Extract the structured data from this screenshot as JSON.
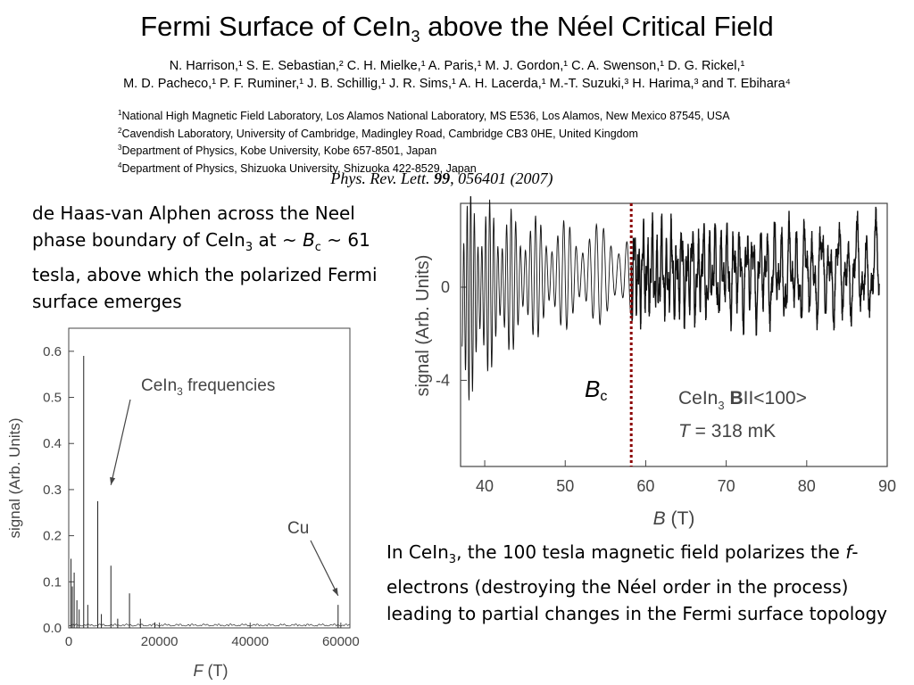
{
  "header": {
    "title_part1": "Fermi Surface of CeIn",
    "title_sub": "3",
    "title_part2": " above the Néel Critical Field",
    "authors_line1": "N. Harrison,¹ S. E. Sebastian,² C. H. Mielke,¹ A. Paris,¹ M. J. Gordon,¹ C. A. Swenson,¹ D. G. Rickel,¹",
    "authors_line2": "M. D. Pacheco,¹  P. F. Ruminer,¹ J. B. Schillig,¹ J. R. Sims,¹ A. H. Lacerda,¹ M.-T. Suzuki,³ H. Harima,³ and T. Ebihara⁴",
    "affiliations": [
      {
        "num": "1",
        "text": "National High Magnetic Field Laboratory, Los Alamos National Laboratory, MS E536, Los Alamos, New Mexico 87545, USA"
      },
      {
        "num": "2",
        "text": "Cavendish Laboratory, University of Cambridge, Madingley Road, Cambridge CB3 0HE, United Kingdom"
      },
      {
        "num": "3",
        "text": "Department of Physics, Kobe University, Kobe 657-8501, Japan"
      },
      {
        "num": "4",
        "text": "Department of Physics, Shizuoka University, Shizuoka 422-8529, Japan"
      }
    ],
    "journal_name": "Phys. Rev. Lett.",
    "journal_volume": "99",
    "journal_rest": ", 056401 (2007)"
  },
  "note1": {
    "a": "de Haas-van Alphen across the Neel phase boundary of CeIn",
    "sub": "3",
    "b": " at ~ ",
    "bc_b": "B",
    "bc_c": "c",
    "c": " ~ 61 tesla, above which the polarized Fermi surface emerges"
  },
  "note2": {
    "a": "In CeIn",
    "sub": "3",
    "b": ", the 100 tesla magnetic field polarizes the ",
    "f": "f",
    "c": "-electrons (destroying the Néel order in the process) leading to partial changes in the Fermi surface topology"
  },
  "chart_data": [
    {
      "type": "line",
      "xlabel_var": "F",
      "xlabel_unit": "(T)",
      "ylabel": "signal (Arb. Units)",
      "xlim": [
        0,
        62000
      ],
      "ylim": [
        0,
        0.65
      ],
      "xticks": [
        0,
        20000,
        40000,
        60000
      ],
      "xtick_labels": [
        "0",
        "20000",
        "40000",
        "60000"
      ],
      "yticks": [
        0.0,
        0.1,
        0.2,
        0.3,
        0.4,
        0.5,
        0.6
      ],
      "ytick_labels": [
        "0.0",
        "0.1",
        "0.2",
        "0.3",
        "0.4",
        "0.5",
        "0.6"
      ],
      "peaks": [
        {
          "x": 500,
          "y": 0.15
        },
        {
          "x": 800,
          "y": 0.09
        },
        {
          "x": 1200,
          "y": 0.12
        },
        {
          "x": 1800,
          "y": 0.06
        },
        {
          "x": 2300,
          "y": 0.04
        },
        {
          "x": 3300,
          "y": 0.59
        },
        {
          "x": 4200,
          "y": 0.05
        },
        {
          "x": 6400,
          "y": 0.275
        },
        {
          "x": 7200,
          "y": 0.03
        },
        {
          "x": 9300,
          "y": 0.135
        },
        {
          "x": 10800,
          "y": 0.02
        },
        {
          "x": 13400,
          "y": 0.075
        },
        {
          "x": 15800,
          "y": 0.02
        },
        {
          "x": 19000,
          "y": 0.012
        },
        {
          "x": 59400,
          "y": 0.05
        }
      ],
      "annotations": [
        {
          "text_a": "CeIn",
          "text_sub": "3",
          "text_b": " frequencies",
          "target_x": 9300,
          "target_y": 0.31
        },
        {
          "text": "Cu",
          "target_x": 59400,
          "target_y": 0.07
        }
      ]
    },
    {
      "type": "line",
      "xlabel_var": "B",
      "xlabel_unit": "(T)",
      "ylabel": "signal (Arb. Units)",
      "xlim": [
        37,
        90
      ],
      "ylim": [
        -7.7,
        3.6
      ],
      "xticks": [
        40,
        50,
        60,
        70,
        80,
        90
      ],
      "xtick_labels": [
        "40",
        "50",
        "60",
        "70",
        "80",
        "90"
      ],
      "yticks": [
        0,
        -4
      ],
      "ytick_labels": [
        "0",
        "-4"
      ],
      "critical_field_x": 58.2,
      "critical_label_b": "B",
      "critical_label_c": "c",
      "legend": {
        "material": "CeIn",
        "material_sub": "3",
        "direction_bold": "B",
        "direction_rest": "II<100>",
        "temp_var": "T",
        "temp_rest": " = 318 mK"
      },
      "colors": {
        "critical_line": "#8b0000",
        "trace": "#000000"
      }
    }
  ]
}
